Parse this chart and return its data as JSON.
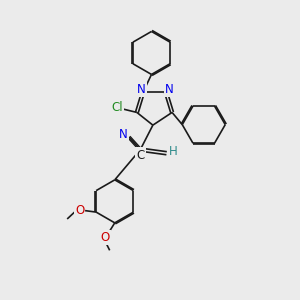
{
  "background_color": "#ebebeb",
  "figure_size": [
    3.0,
    3.0
  ],
  "dpi": 100,
  "bond_color": "#1a1a1a",
  "bond_width": 1.2,
  "atom_colors": {
    "N": "#0000ee",
    "Cl": "#228b22",
    "O": "#cc0000",
    "H": "#2e8b8b",
    "C": "#1a1a1a"
  },
  "font_size": 8.5,
  "ring_r": 0.72,
  "dbo": 0.055
}
